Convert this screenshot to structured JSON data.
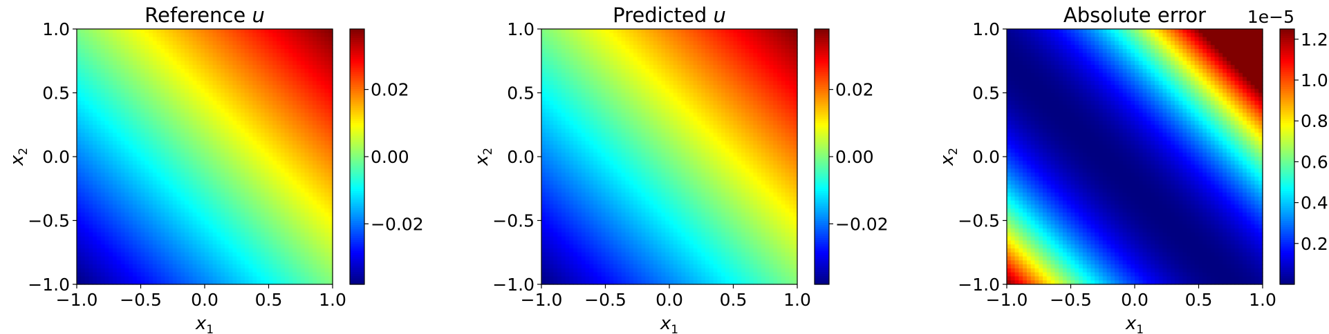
{
  "chart_data": [
    {
      "type": "heatmap",
      "title_text": "Reference ",
      "title_var": "u",
      "xlabel_var": "x",
      "xlabel_sub": "1",
      "ylabel_var": "x",
      "ylabel_sub": "2",
      "xlim": [
        -1.0,
        1.0
      ],
      "ylim": [
        -1.0,
        1.0
      ],
      "xticks": [
        "−1.0",
        "−0.5",
        "0.0",
        "0.5",
        "1.0"
      ],
      "yticks": [
        "−1.0",
        "−0.5",
        "0.0",
        "0.5",
        "1.0"
      ],
      "colormap": "jet",
      "field": "reference",
      "field_range": [
        -0.038,
        0.038
      ],
      "colorbar": {
        "range": [
          -0.038,
          0.038
        ],
        "ticks": [
          -0.02,
          0.0,
          0.02
        ],
        "ticklabels": [
          "−0.02",
          "0.00",
          "0.02"
        ],
        "offset_text": ""
      }
    },
    {
      "type": "heatmap",
      "title_text": "Predicted ",
      "title_var": "u",
      "xlabel_var": "x",
      "xlabel_sub": "1",
      "ylabel_var": "x",
      "ylabel_sub": "2",
      "xlim": [
        -1.0,
        1.0
      ],
      "ylim": [
        -1.0,
        1.0
      ],
      "xticks": [
        "−1.0",
        "−0.5",
        "0.0",
        "0.5",
        "1.0"
      ],
      "yticks": [
        "−1.0",
        "−0.5",
        "0.0",
        "0.5",
        "1.0"
      ],
      "colormap": "jet",
      "field": "predicted",
      "field_range": [
        -0.038,
        0.038
      ],
      "colorbar": {
        "range": [
          -0.038,
          0.038
        ],
        "ticks": [
          -0.02,
          0.0,
          0.02
        ],
        "ticklabels": [
          "−0.02",
          "0.00",
          "0.02"
        ],
        "offset_text": ""
      }
    },
    {
      "type": "heatmap",
      "title_text": "Absolute error",
      "title_var": "",
      "xlabel_var": "x",
      "xlabel_sub": "1",
      "ylabel_var": "x",
      "ylabel_sub": "2",
      "xlim": [
        -1.0,
        1.0
      ],
      "ylim": [
        -1.0,
        1.0
      ],
      "xticks": [
        "−1.0",
        "−0.5",
        "0.0",
        "0.5",
        "1.0"
      ],
      "yticks": [
        "−1.0",
        "−0.5",
        "0.0",
        "0.5",
        "1.0"
      ],
      "colormap": "jet",
      "field": "abs_error",
      "field_range": [
        0.0,
        1.25
      ],
      "colorbar": {
        "range": [
          0.0,
          1.25
        ],
        "ticks": [
          0.2,
          0.4,
          0.6,
          0.8,
          1.0,
          1.2
        ],
        "ticklabels": [
          "0.2",
          "0.4",
          "0.6",
          "0.8",
          "1.0",
          "1.2"
        ],
        "offset_text": "1e−5"
      }
    }
  ]
}
